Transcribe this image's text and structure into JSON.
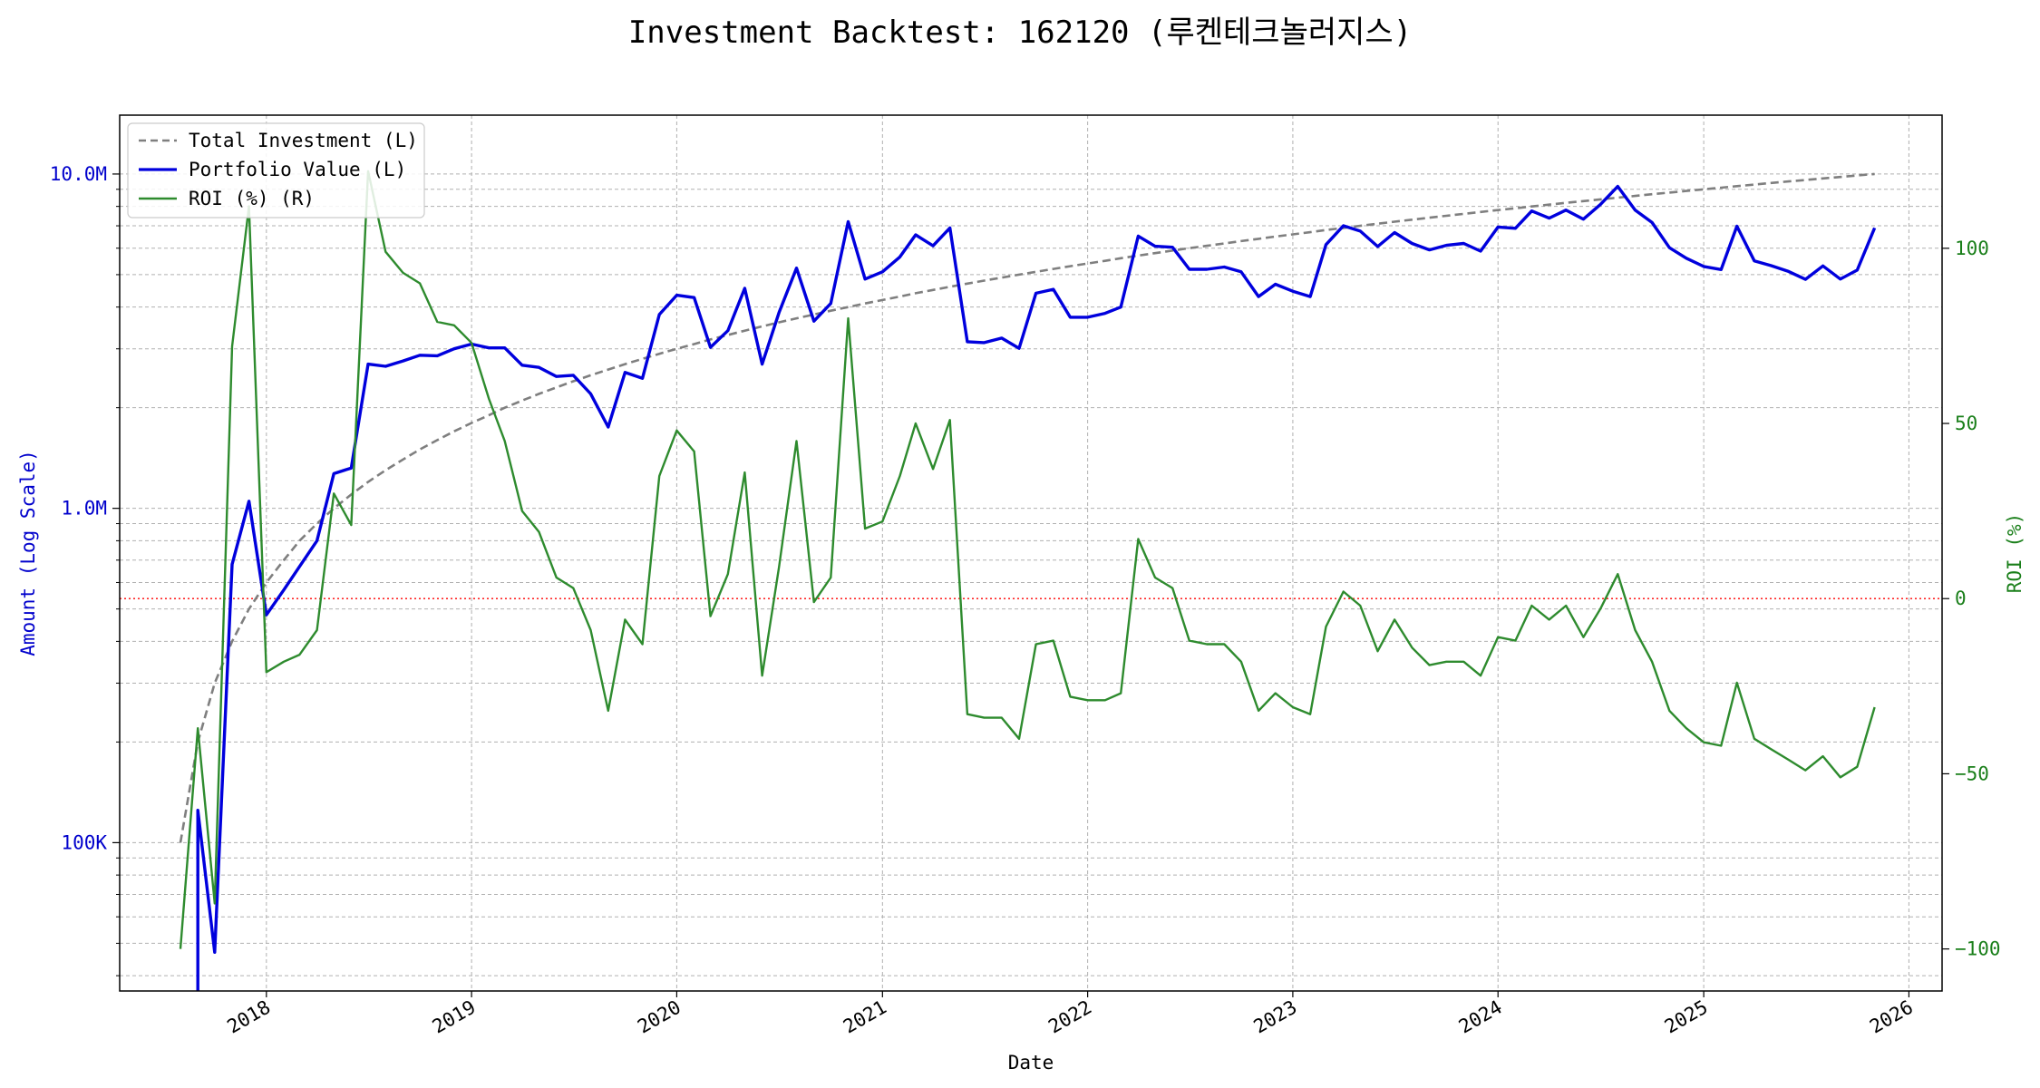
{
  "chart_data": {
    "type": "line",
    "title": "Investment Backtest: 162120 (루켄테크놀러지스)",
    "xlabel": "Date",
    "ylabel_left": "Amount (Log Scale)",
    "ylabel_right": "ROI (%)",
    "x_tick_labels": [
      "2018",
      "2019",
      "2020",
      "2021",
      "2022",
      "2023",
      "2024",
      "2025",
      "2026"
    ],
    "x_range": [
      "2017-04-15",
      "2026-03-01"
    ],
    "y_left_scale": "log",
    "y_left_range": [
      36000,
      15000000
    ],
    "y_left_ticks": [
      {
        "value": 100000,
        "label": "100K"
      },
      {
        "value": 1000000,
        "label": "1.0M"
      },
      {
        "value": 10000000,
        "label": "10.0M"
      }
    ],
    "y_right_range": [
      -112,
      138
    ],
    "y_right_ticks": [
      {
        "value": -100,
        "label": "−100"
      },
      {
        "value": -50,
        "label": "−50"
      },
      {
        "value": 0,
        "label": "0"
      },
      {
        "value": 50,
        "label": "50"
      },
      {
        "value": 100,
        "label": "100"
      }
    ],
    "zero_line": {
      "axis": "right",
      "value": 0,
      "color": "#ff0000",
      "style": "dotted"
    },
    "grid": true,
    "legend_position": "upper left",
    "colors": {
      "total_investment": "#7f7f7f",
      "portfolio_value": "#0000dd",
      "roi": "#2e8b2e",
      "left_axis": "#0000cc",
      "right_axis": "#1a7f1a"
    },
    "dates": [
      "2017-08",
      "2017-09",
      "2017-10",
      "2017-11",
      "2017-12",
      "2018-01",
      "2018-02",
      "2018-03",
      "2018-04",
      "2018-05",
      "2018-06",
      "2018-07",
      "2018-08",
      "2018-09",
      "2018-10",
      "2018-11",
      "2018-12",
      "2019-01",
      "2019-02",
      "2019-03",
      "2019-04",
      "2019-05",
      "2019-06",
      "2019-07",
      "2019-08",
      "2019-09",
      "2019-10",
      "2019-11",
      "2019-12",
      "2020-01",
      "2020-02",
      "2020-03",
      "2020-04",
      "2020-05",
      "2020-06",
      "2020-07",
      "2020-08",
      "2020-09",
      "2020-10",
      "2020-11",
      "2020-12",
      "2021-01",
      "2021-02",
      "2021-03",
      "2021-04",
      "2021-05",
      "2021-06",
      "2021-07",
      "2021-08",
      "2021-09",
      "2021-10",
      "2021-11",
      "2021-12",
      "2022-01",
      "2022-02",
      "2022-03",
      "2022-04",
      "2022-05",
      "2022-06",
      "2022-07",
      "2022-08",
      "2022-09",
      "2022-10",
      "2022-11",
      "2022-12",
      "2023-01",
      "2023-02",
      "2023-03",
      "2023-04",
      "2023-05",
      "2023-06",
      "2023-07",
      "2023-08",
      "2023-09",
      "2023-10",
      "2023-11",
      "2023-12",
      "2024-01",
      "2024-02",
      "2024-03",
      "2024-04",
      "2024-05",
      "2024-06",
      "2024-07",
      "2024-08",
      "2024-09",
      "2024-10",
      "2024-11",
      "2024-12",
      "2025-01",
      "2025-02",
      "2025-03",
      "2025-04",
      "2025-05",
      "2025-06",
      "2025-07",
      "2025-08",
      "2025-09",
      "2025-10",
      "2025-11"
    ],
    "series": [
      {
        "name": "Total Investment (L)",
        "style": "dashed",
        "values": [
          100000,
          200000,
          300000,
          400000,
          500000,
          600000,
          700000,
          800000,
          900000,
          1000000,
          1100000,
          1200000,
          1300000,
          1400000,
          1500000,
          1600000,
          1700000,
          1800000,
          1900000,
          2000000,
          2100000,
          2200000,
          2300000,
          2400000,
          2500000,
          2600000,
          2700000,
          2800000,
          2900000,
          3000000,
          3100000,
          3200000,
          3300000,
          3400000,
          3500000,
          3600000,
          3700000,
          3800000,
          3900000,
          4000000,
          4100000,
          4200000,
          4300000,
          4400000,
          4500000,
          4600000,
          4700000,
          4800000,
          4900000,
          5000000,
          5100000,
          5200000,
          5300000,
          5400000,
          5500000,
          5600000,
          5700000,
          5800000,
          5900000,
          6000000,
          6100000,
          6200000,
          6300000,
          6400000,
          6500000,
          6600000,
          6700000,
          6800000,
          6900000,
          7000000,
          7100000,
          7200000,
          7300000,
          7400000,
          7500000,
          7600000,
          7700000,
          7800000,
          7900000,
          8000000,
          8100000,
          8200000,
          8300000,
          8400000,
          8500000,
          8600000,
          8700000,
          8800000,
          8900000,
          9000000,
          9100000,
          9200000,
          9300000,
          9400000,
          9500000,
          9600000,
          9700000,
          9800000,
          9900000,
          10000000
        ]
      },
      {
        "name": "Portfolio Value (L)",
        "style": "solid",
        "values": [
          null,
          125000,
          47000,
          680000,
          1050000,
          480000,
          570000,
          670000,
          800000,
          1270000,
          1320000,
          2700000,
          2660000,
          2760000,
          2870000,
          2860000,
          3000000,
          3100000,
          3020000,
          3020000,
          2680000,
          2640000,
          2480000,
          2500000,
          2200000,
          1750000,
          2550000,
          2450000,
          3800000,
          4340000,
          4270000,
          3030000,
          3400000,
          4550000,
          2700000,
          3850000,
          5230000,
          3630000,
          4100000,
          7200000,
          4850000,
          5100000,
          5650000,
          6580000,
          6100000,
          6900000,
          3150000,
          3130000,
          3230000,
          3010000,
          4400000,
          4520000,
          3730000,
          3730000,
          3830000,
          4000000,
          6520000,
          6080000,
          6040000,
          5190000,
          5190000,
          5270000,
          5100000,
          4300000,
          4680000,
          4460000,
          4300000,
          6150000,
          7000000,
          6750000,
          6070000,
          6680000,
          6200000,
          5930000,
          6120000,
          6200000,
          5880000,
          6940000,
          6880000,
          7750000,
          7380000,
          7800000,
          7330000,
          8100000,
          9180000,
          7800000,
          7160000,
          6020000,
          5600000,
          5290000,
          5180000,
          6980000,
          5500000,
          5320000,
          5110000,
          4840000,
          5310000,
          4850000,
          5160000,
          6900000
        ]
      },
      {
        "name": "ROI (%) (R)",
        "style": "solid",
        "values": [
          -100,
          -37,
          -87,
          72,
          112,
          -21,
          -18,
          -16,
          -9,
          30,
          21,
          122,
          99,
          93,
          90,
          79,
          78,
          73,
          57,
          45,
          25,
          19,
          6,
          3,
          -9,
          -32,
          -6,
          -13,
          35,
          48,
          42,
          -5,
          7,
          36,
          -22,
          9,
          45,
          -1,
          6,
          80,
          20,
          22,
          35,
          50,
          37,
          51,
          -33,
          -34,
          -34,
          -40,
          -13,
          -12,
          -28,
          -29,
          -29,
          -27,
          17,
          6,
          3,
          -12,
          -13,
          -13,
          -18,
          -32,
          -27,
          -31,
          -33,
          -8,
          2,
          -2,
          -15,
          -6,
          -14,
          -19,
          -18,
          -18,
          -22,
          -11,
          -12,
          -2,
          -6,
          -2,
          -11,
          -3,
          7,
          -9,
          -18,
          -32,
          -37,
          -41,
          -42,
          -24,
          -40,
          -43,
          -46,
          -49,
          -45,
          -51,
          -48,
          -31
        ]
      }
    ]
  }
}
